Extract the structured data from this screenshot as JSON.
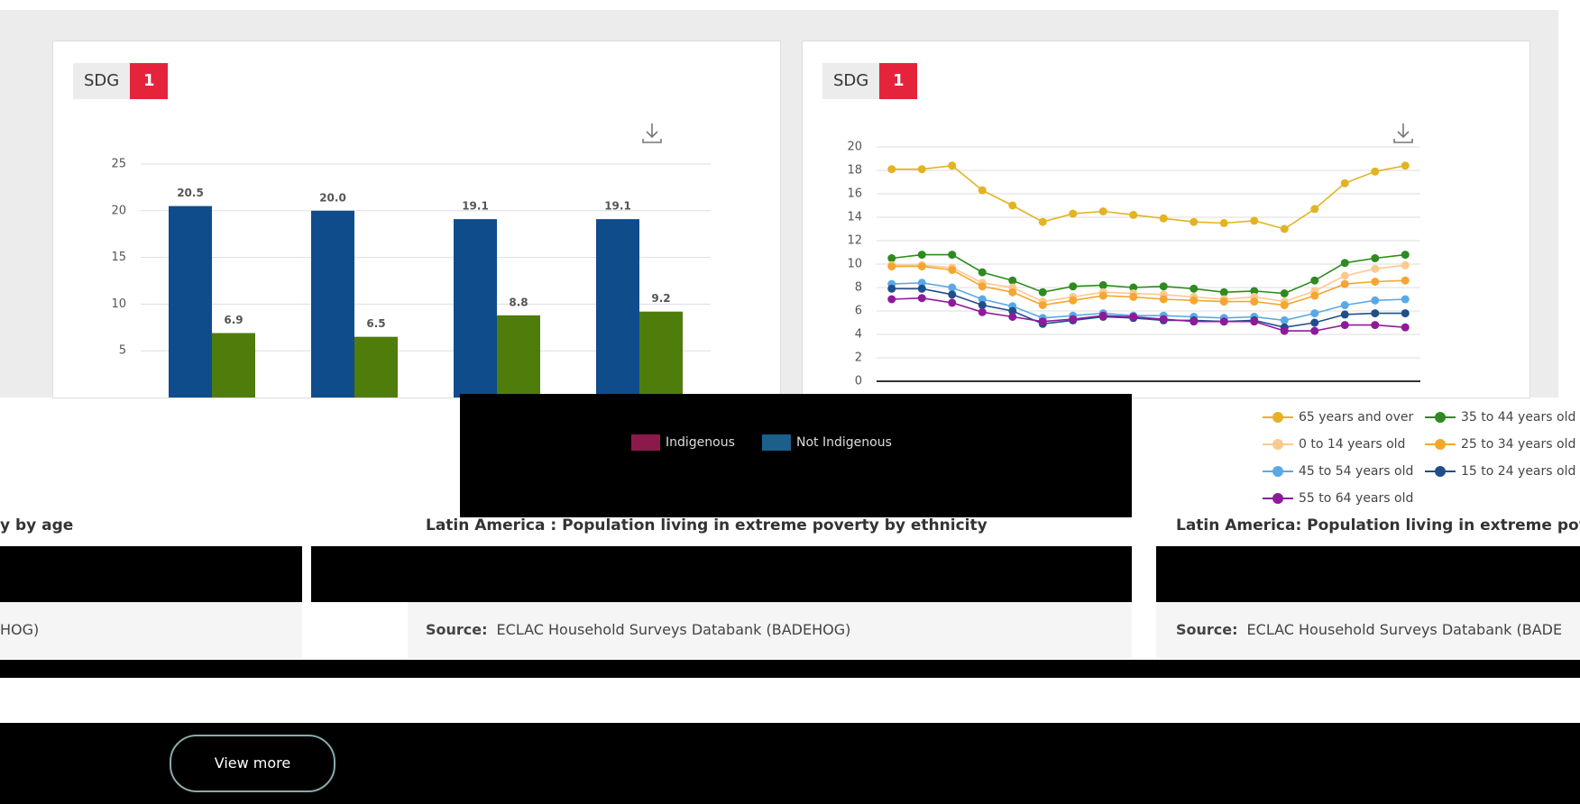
{
  "cards": [
    {
      "badge_label": "SDG",
      "badge_number": "1"
    },
    {
      "badge_label": "SDG",
      "badge_number": "1"
    }
  ],
  "chart_data": [
    {
      "type": "bar",
      "categories": [
        null,
        null,
        null,
        null
      ],
      "series": [
        {
          "color": "#0f4c8c",
          "values": [
            20.5,
            20.0,
            19.1,
            19.1
          ],
          "value_labels": [
            "20.5",
            "20.0",
            "19.1",
            "19.1"
          ]
        },
        {
          "color": "#4f7d0c",
          "values": [
            6.9,
            6.5,
            8.8,
            9.2
          ]
        }
      ],
      "ylim": [
        0,
        25
      ],
      "yticks": [
        5,
        10,
        15,
        20,
        25
      ],
      "grid": true
    },
    {
      "type": "line",
      "categories": [
        null,
        null,
        null,
        null,
        null,
        null,
        null,
        null,
        null,
        null,
        null,
        null,
        null,
        null,
        null,
        null,
        null,
        null
      ],
      "series": [
        {
          "name": "65 years and over",
          "color": "#e3b322",
          "values": [
            18.1,
            18.1,
            18.4,
            16.3,
            15.0,
            13.6,
            14.3,
            14.5,
            14.2,
            13.9,
            13.6,
            13.5,
            13.7,
            13.0,
            14.7,
            16.9,
            17.9,
            18.4
          ]
        },
        {
          "name": "35 to 44 years old",
          "color": "#2e8b1f",
          "values": [
            10.5,
            10.8,
            10.8,
            9.3,
            8.6,
            7.6,
            8.1,
            8.2,
            8.0,
            8.1,
            7.9,
            7.6,
            7.7,
            7.5,
            8.6,
            10.1,
            10.5,
            10.8
          ]
        },
        {
          "name": "0 to 14 years old",
          "color": "#fcc98f",
          "values": [
            9.9,
            9.9,
            9.7,
            8.4,
            8.0,
            6.8,
            7.2,
            7.6,
            7.5,
            7.4,
            7.2,
            7.0,
            7.2,
            6.8,
            7.7,
            9.0,
            9.6,
            9.9
          ]
        },
        {
          "name": "25 to 34 years old",
          "color": "#f5a631",
          "values": [
            9.8,
            9.8,
            9.5,
            8.1,
            7.6,
            6.5,
            6.9,
            7.3,
            7.2,
            7.0,
            6.9,
            6.8,
            6.8,
            6.5,
            7.3,
            8.3,
            8.5,
            8.6
          ]
        },
        {
          "name": "45 to 54 years old",
          "color": "#5aa9e6",
          "values": [
            8.3,
            8.4,
            8.0,
            7.0,
            6.4,
            5.4,
            5.6,
            5.8,
            5.6,
            5.6,
            5.5,
            5.4,
            5.5,
            5.2,
            5.8,
            6.5,
            6.9,
            7.0
          ]
        },
        {
          "name": "15 to 24 years old",
          "color": "#1f4e8c",
          "values": [
            7.9,
            7.9,
            7.4,
            6.5,
            6.0,
            4.9,
            5.2,
            5.5,
            5.4,
            5.2,
            5.2,
            5.1,
            5.2,
            4.6,
            5.0,
            5.7,
            5.8,
            5.8
          ]
        },
        {
          "name": "55 to 64 years old",
          "color": "#8e1a9b",
          "values": [
            7.0,
            7.1,
            6.7,
            5.9,
            5.5,
            5.1,
            5.3,
            5.6,
            5.5,
            5.3,
            5.1,
            5.1,
            5.1,
            4.3,
            4.3,
            4.8,
            4.8,
            4.6
          ]
        }
      ],
      "ylim": [
        0,
        20
      ],
      "yticks": [
        0,
        2,
        4,
        6,
        8,
        10,
        12,
        14,
        16,
        18,
        20
      ],
      "grid": true
    }
  ],
  "panels": {
    "left_title": "y by age",
    "left_source": "HOG)",
    "middle_legend": [
      "Indigenous",
      "Not Indigenous"
    ],
    "middle_title": "Latin America : Population living in extreme poverty by ethnicity",
    "middle_source_label": "Source:",
    "middle_source": "ECLAC Household Surveys Databank (BADEHOG)",
    "right_title": "Latin America: Population living in extreme povert",
    "right_source_label": "Source:",
    "right_source": "ECLAC Household Surveys Databank (BADE"
  },
  "button": "View more"
}
